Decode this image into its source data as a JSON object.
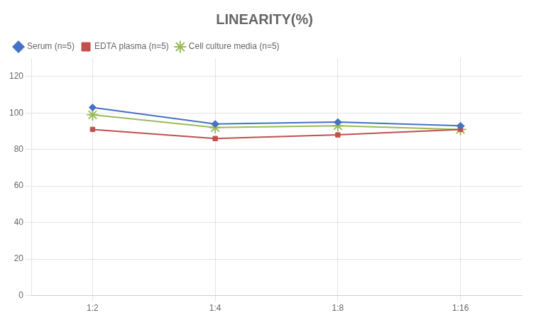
{
  "chart_data": {
    "type": "line",
    "title": "LINEARITY(%)",
    "categories": [
      "1:2",
      "1:4",
      "1:8",
      "1:16"
    ],
    "series": [
      {
        "name": "Serum (n=5)",
        "color": "#4472C4",
        "marker": "diamond",
        "values": [
          103,
          94,
          95,
          93
        ]
      },
      {
        "name": "EDTA plasma (n=5)",
        "color": "#C0504D",
        "marker": "square",
        "values": [
          91,
          86,
          88,
          91
        ]
      },
      {
        "name": "Cell culture media (n=5)",
        "color": "#9BBB59",
        "marker": "star",
        "values": [
          99,
          92,
          93,
          91
        ]
      }
    ],
    "ylim": [
      0,
      130
    ],
    "yticks": [
      0,
      20,
      40,
      60,
      80,
      100,
      120
    ],
    "grid": true,
    "legend": "top"
  }
}
